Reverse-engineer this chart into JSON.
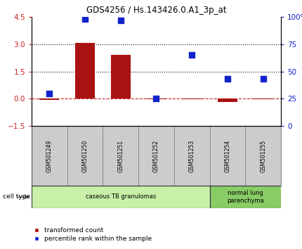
{
  "title": "GDS4256 / Hs.143426.0.A1_3p_at",
  "samples": [
    "GSM501249",
    "GSM501250",
    "GSM501251",
    "GSM501252",
    "GSM501253",
    "GSM501254",
    "GSM501255"
  ],
  "transformed_counts": [
    -0.08,
    3.05,
    2.4,
    -0.02,
    -0.04,
    -0.18,
    -0.04
  ],
  "percentile_ranks": [
    30,
    98,
    97,
    25,
    65,
    43,
    43
  ],
  "left_ylim": [
    -1.5,
    4.5
  ],
  "right_ylim": [
    0,
    100
  ],
  "left_yticks": [
    -1.5,
    0,
    1.5,
    3,
    4.5
  ],
  "right_yticks": [
    0,
    25,
    50,
    75,
    100
  ],
  "right_yticklabels": [
    "0",
    "25",
    "50",
    "75",
    "100%"
  ],
  "hlines": [
    0,
    1.5,
    3.0
  ],
  "hline_styles": [
    "dashed",
    "dotted",
    "dotted"
  ],
  "hline_colors": [
    "#cc2222",
    "#111111",
    "#111111"
  ],
  "bar_color": "#aa1111",
  "dot_color": "#1122cc",
  "bar_width": 0.55,
  "cell_type_groups": [
    {
      "label": "caseous TB granulomas",
      "start": 0,
      "end": 5,
      "color": "#c8f0a8"
    },
    {
      "label": "normal lung\nparenchyma",
      "start": 5,
      "end": 7,
      "color": "#88cc66"
    }
  ],
  "cell_type_label": "cell type",
  "legend_items": [
    {
      "marker": "s",
      "color": "#aa1111",
      "label": "transformed count"
    },
    {
      "marker": "s",
      "color": "#1122cc",
      "label": "percentile rank within the sample"
    }
  ],
  "bg_color": "#ffffff",
  "tick_color_left": "#cc2222",
  "tick_color_right": "#1122cc",
  "label_bg_color": "#cccccc",
  "label_edge_color": "#888888"
}
